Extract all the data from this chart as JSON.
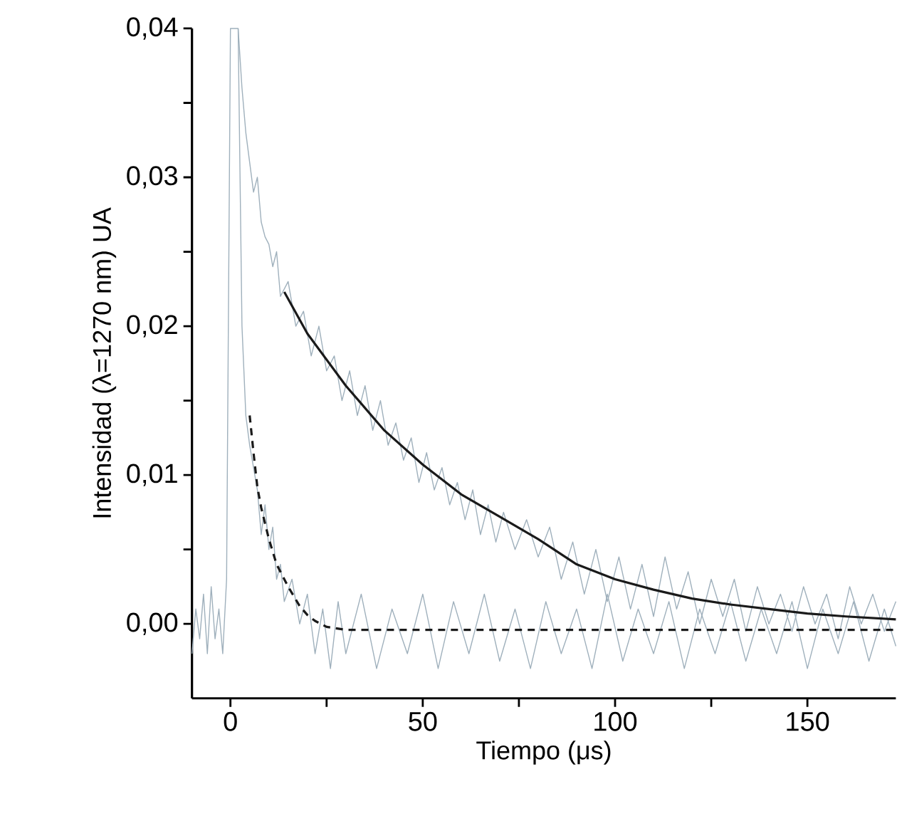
{
  "chart_data": {
    "type": "line",
    "xlabel": "Tiempo (μs)",
    "ylabel": "Intensidad (λ=1270 nm) UA",
    "xlim": [
      -10,
      173
    ],
    "ylim": [
      -0.005,
      0.04
    ],
    "xticks": [
      0,
      {
        "value": 25,
        "label": null
      },
      50,
      {
        "value": 75,
        "label": null
      },
      100,
      {
        "value": 125,
        "label": null
      },
      150
    ],
    "yticks": [
      {
        "value": 0,
        "label": "0,00"
      },
      {
        "value": 0.005,
        "label": null
      },
      {
        "value": 0.01,
        "label": "0,01"
      },
      {
        "value": 0.015,
        "label": null
      },
      {
        "value": 0.02,
        "label": "0,02"
      },
      {
        "value": 0.025,
        "label": null
      },
      {
        "value": 0.03,
        "label": "0,03"
      },
      {
        "value": 0.035,
        "label": null
      },
      {
        "value": 0.04,
        "label": "0,04"
      }
    ],
    "series": [
      {
        "color": "#9fb0bc",
        "line_style": "solid",
        "x": [
          2,
          3,
          4,
          5,
          6,
          7,
          8,
          9,
          10,
          11,
          12,
          13,
          15,
          17,
          19,
          21,
          23,
          25,
          27,
          29,
          31,
          33,
          35,
          37,
          39,
          41,
          43,
          45,
          47,
          49,
          51,
          53,
          55,
          57,
          59,
          61,
          63,
          65,
          67,
          69,
          71,
          74,
          77,
          80,
          83,
          86,
          89,
          92,
          95,
          98,
          101,
          104,
          107,
          110,
          113,
          116,
          119,
          122,
          125,
          128,
          131,
          134,
          137,
          140,
          143,
          146,
          149,
          152,
          155,
          158,
          161,
          164,
          167,
          170,
          173
        ],
        "values": [
          0.04,
          0.036,
          0.033,
          0.031,
          0.029,
          0.03,
          0.027,
          0.026,
          0.0255,
          0.024,
          0.025,
          0.022,
          0.023,
          0.02,
          0.021,
          0.018,
          0.02,
          0.017,
          0.018,
          0.015,
          0.017,
          0.014,
          0.016,
          0.013,
          0.015,
          0.012,
          0.0135,
          0.011,
          0.0125,
          0.0095,
          0.0115,
          0.009,
          0.0105,
          0.008,
          0.0095,
          0.007,
          0.009,
          0.006,
          0.008,
          0.0055,
          0.0075,
          0.005,
          0.007,
          0.0045,
          0.0065,
          0.003,
          0.0055,
          0.002,
          0.005,
          0.0015,
          0.0045,
          0.001,
          0.004,
          0.0005,
          0.0045,
          0.001,
          0.0035,
          0.0,
          0.003,
          0.0005,
          0.003,
          -0.0005,
          0.0025,
          0.0,
          0.002,
          -0.0005,
          0.0025,
          0.0,
          0.002,
          -0.001,
          0.0025,
          0.0,
          0.002,
          -0.0005,
          0.0015
        ]
      },
      {
        "color": "#9fb0bc",
        "line_style": "solid",
        "x": [
          -10,
          -9,
          -8,
          -7,
          -6,
          -5,
          -4,
          -3,
          -2,
          -1,
          0,
          2,
          3,
          4,
          5,
          6,
          7,
          8,
          9,
          10,
          11,
          12,
          13,
          14,
          16,
          18,
          20,
          22,
          24,
          26,
          28,
          30,
          34,
          38,
          42,
          46,
          50,
          54,
          58,
          62,
          66,
          70,
          74,
          78,
          82,
          86,
          90,
          94,
          98,
          102,
          106,
          110,
          114,
          118,
          122,
          126,
          130,
          134,
          138,
          142,
          146,
          150,
          154,
          158,
          162,
          166,
          170,
          173
        ],
        "values": [
          -0.002,
          0.001,
          -0.001,
          0.002,
          -0.002,
          0.0025,
          -0.001,
          0.001,
          -0.002,
          0.003,
          0.04,
          0.04,
          0.02,
          0.014,
          0.012,
          0.0105,
          0.009,
          0.006,
          0.008,
          0.005,
          0.0065,
          0.003,
          0.004,
          0.0015,
          0.003,
          0.0,
          0.002,
          -0.002,
          0.001,
          -0.003,
          0.0015,
          -0.002,
          0.002,
          -0.003,
          0.001,
          -0.002,
          0.002,
          -0.003,
          0.0015,
          -0.002,
          0.002,
          -0.0025,
          0.001,
          -0.003,
          0.0015,
          -0.002,
          0.001,
          -0.003,
          0.002,
          -0.0025,
          0.001,
          -0.002,
          0.0015,
          -0.003,
          0.001,
          -0.002,
          0.0015,
          -0.0025,
          0.001,
          -0.002,
          0.0015,
          -0.003,
          0.001,
          -0.002,
          0.0015,
          -0.0025,
          0.001,
          -0.0015
        ]
      },
      {
        "color": "#1a1a1a",
        "line_style": "solid",
        "x": [
          14,
          20,
          30,
          40,
          50,
          60,
          70,
          80,
          90,
          100,
          110,
          120,
          130,
          140,
          150,
          160,
          173
        ],
        "values": [
          0.0223,
          0.0195,
          0.016,
          0.013,
          0.0107,
          0.0087,
          0.0072,
          0.0057,
          0.004,
          0.003,
          0.0023,
          0.0017,
          0.0013,
          0.001,
          0.0007,
          0.0005,
          0.0003
        ]
      },
      {
        "color": "#1a1a1a",
        "line_style": "dashed",
        "x": [
          5,
          6,
          7,
          8,
          10,
          12,
          15,
          18,
          20,
          22,
          25,
          30,
          60,
          100,
          140,
          173
        ],
        "values": [
          0.014,
          0.0115,
          0.0092,
          0.0078,
          0.0057,
          0.004,
          0.0025,
          0.0012,
          0.0006,
          0.0002,
          -0.0002,
          -0.0004,
          -0.0004,
          -0.0004,
          -0.0004,
          -0.0004
        ]
      }
    ]
  }
}
